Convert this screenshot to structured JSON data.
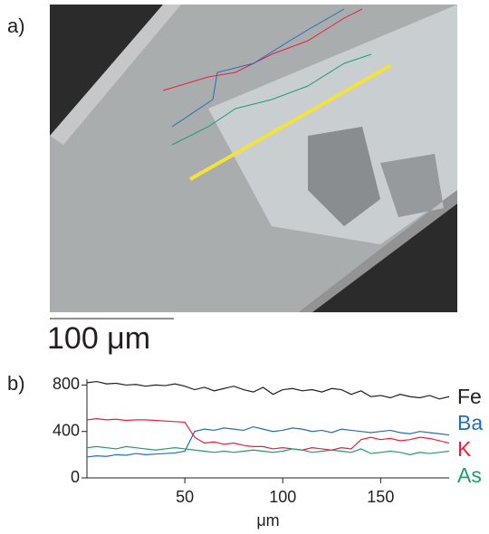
{
  "panel_a_label": "a)",
  "scale_bar_label": "100 μm",
  "panel_b_label": "b)",
  "chart_data": {
    "type": "line",
    "xlabel": "μm",
    "x": [
      0,
      5,
      10,
      15,
      20,
      25,
      30,
      35,
      40,
      45,
      50,
      55,
      60,
      65,
      70,
      75,
      80,
      85,
      90,
      95,
      100,
      105,
      110,
      115,
      120,
      125,
      130,
      135,
      140,
      145,
      150,
      155,
      160,
      165,
      170,
      175,
      180,
      185
    ],
    "series": [
      {
        "name": "Fe",
        "color": "#231f20",
        "values": [
          820,
          830,
          810,
          815,
          800,
          805,
          790,
          800,
          795,
          810,
          790,
          760,
          780,
          750,
          770,
          790,
          760,
          740,
          780,
          720,
          760,
          770,
          750,
          760,
          740,
          770,
          760,
          720,
          750,
          700,
          710,
          690,
          720,
          700,
          690,
          710,
          680,
          700
        ]
      },
      {
        "name": "Ba",
        "color": "#1f6fb8",
        "values": [
          180,
          190,
          185,
          200,
          195,
          210,
          200,
          205,
          210,
          215,
          230,
          400,
          420,
          410,
          430,
          420,
          410,
          440,
          420,
          400,
          410,
          430,
          420,
          400,
          410,
          390,
          420,
          410,
          400,
          390,
          400,
          410,
          390,
          380,
          400,
          390,
          380,
          370
        ]
      },
      {
        "name": "K",
        "color": "#e8203c",
        "values": [
          500,
          510,
          500,
          505,
          495,
          500,
          500,
          495,
          490,
          485,
          480,
          350,
          300,
          310,
          290,
          300,
          280,
          270,
          270,
          250,
          260,
          250,
          240,
          260,
          250,
          240,
          260,
          250,
          330,
          350,
          330,
          340,
          320,
          330,
          350,
          340,
          320,
          300
        ]
      },
      {
        "name": "As",
        "color": "#1e9e6a",
        "values": [
          260,
          270,
          260,
          250,
          270,
          260,
          250,
          240,
          250,
          260,
          250,
          240,
          230,
          220,
          230,
          220,
          230,
          240,
          230,
          220,
          230,
          250,
          240,
          220,
          230,
          240,
          230,
          220,
          250,
          210,
          220,
          230,
          220,
          200,
          220,
          210,
          220,
          230
        ]
      }
    ],
    "xlim": [
      0,
      185
    ],
    "xticks": [
      50,
      100,
      150
    ],
    "ylim": [
      0,
      850
    ],
    "yticks": [
      0,
      400,
      800
    ]
  }
}
